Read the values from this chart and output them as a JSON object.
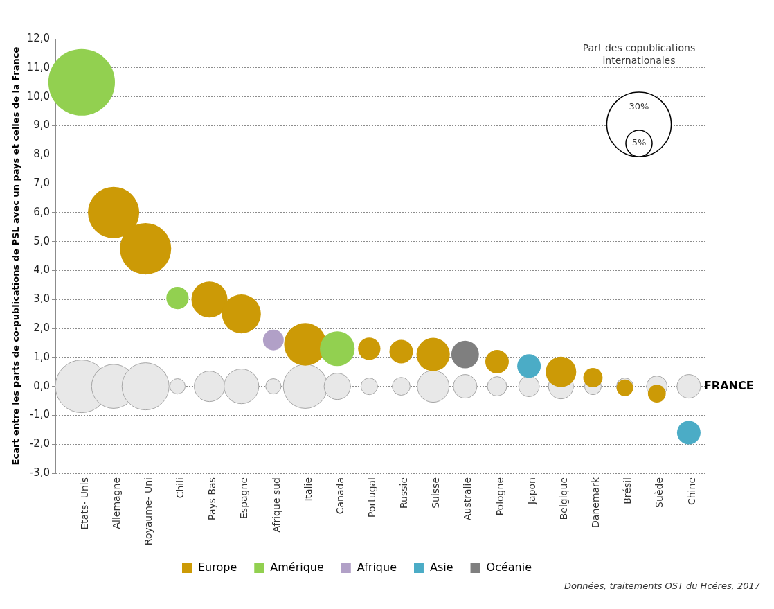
{
  "chart_data": {
    "type": "bubble",
    "ylabel": "Ecart entre les parts de co-publications de PSL avec un pays et celles de la France",
    "categories": [
      "Etats- Unis",
      "Allemagne",
      "Royaume- Uni",
      "Chili",
      "Pays Bas",
      "Espagne",
      "Afrique sud",
      "Italie",
      "Canada",
      "Portugal",
      "Russie",
      "Suisse",
      "Australie",
      "Pologne",
      "Japon",
      "Belgique",
      "Danemark",
      "Brésil",
      "Suède",
      "Chine"
    ],
    "series": [
      {
        "color": "#e8e8e8",
        "values": [
          0,
          0,
          0,
          0,
          0,
          0,
          0,
          0,
          0,
          0,
          0,
          0,
          0,
          0,
          0,
          0,
          0,
          0,
          0,
          0
        ],
        "sizes": [
          20,
          14,
          16,
          1.7,
          6.7,
          8.7,
          1.7,
          14,
          5,
          2,
          2.3,
          7.3,
          4,
          2.7,
          3.1,
          4.5,
          2,
          2,
          3.1,
          4
        ]
      },
      {
        "name": "Europe",
        "color": "#cc9a06",
        "values": [
          null,
          6.0,
          4.75,
          null,
          3.0,
          2.5,
          null,
          1.45,
          null,
          1.3,
          1.2,
          1.1,
          null,
          0.85,
          null,
          0.5,
          0.3,
          -0.05,
          -0.25,
          null
        ],
        "sizes": [
          null,
          19,
          19,
          null,
          9.4,
          10.9,
          null,
          13,
          null,
          3.6,
          4,
          8,
          null,
          4,
          null,
          6.7,
          2.7,
          2,
          2.3,
          null
        ]
      },
      {
        "name": "Amérique",
        "color": "#92d050",
        "values": [
          10.5,
          null,
          null,
          3.05,
          null,
          null,
          null,
          null,
          1.3,
          null,
          null,
          null,
          null,
          null,
          null,
          null,
          null,
          null,
          null,
          null
        ],
        "sizes": [
          32,
          null,
          null,
          3.6,
          null,
          null,
          null,
          null,
          8.7,
          null,
          null,
          null,
          null,
          null,
          null,
          null,
          null,
          null,
          null,
          null
        ]
      },
      {
        "name": "Afrique",
        "color": "#b1a0c7",
        "values": [
          null,
          null,
          null,
          null,
          null,
          null,
          1.6,
          null,
          null,
          null,
          null,
          null,
          null,
          null,
          null,
          null,
          null,
          null,
          null,
          null
        ],
        "sizes": [
          null,
          null,
          null,
          null,
          null,
          null,
          3.1,
          null,
          null,
          null,
          null,
          null,
          null,
          null,
          null,
          null,
          null,
          null,
          null,
          null
        ]
      },
      {
        "name": "Asie",
        "color": "#4bacc6",
        "values": [
          null,
          null,
          null,
          null,
          null,
          null,
          null,
          null,
          null,
          null,
          null,
          null,
          null,
          null,
          0.7,
          null,
          null,
          null,
          null,
          -1.6
        ],
        "sizes": [
          null,
          null,
          null,
          null,
          null,
          null,
          null,
          null,
          null,
          null,
          null,
          null,
          null,
          null,
          4,
          null,
          null,
          null,
          null,
          4
        ]
      },
      {
        "name": "Océanie",
        "color": "#7f7f7f",
        "values": [
          null,
          null,
          null,
          null,
          null,
          null,
          null,
          null,
          null,
          null,
          null,
          null,
          1.1,
          null,
          null,
          null,
          null,
          null,
          null,
          null
        ],
        "sizes": [
          null,
          null,
          null,
          null,
          null,
          null,
          null,
          null,
          null,
          null,
          null,
          null,
          5.5,
          null,
          null,
          null,
          null,
          null,
          null,
          null
        ]
      }
    ],
    "ylim": [
      -3,
      12
    ],
    "yticks": [
      {
        "value": -3,
        "label": "-3,0"
      },
      {
        "value": -2,
        "label": "-2,0"
      },
      {
        "value": -1,
        "label": "-1,0"
      },
      {
        "value": 0,
        "label": "0,0"
      },
      {
        "value": 1,
        "label": "1,0"
      },
      {
        "value": 2,
        "label": "2,0"
      },
      {
        "value": 3,
        "label": "3,0"
      },
      {
        "value": 4,
        "label": "4,0"
      },
      {
        "value": 5,
        "label": "5,0"
      },
      {
        "value": 6,
        "label": "6,0"
      },
      {
        "value": 7,
        "label": "7,0"
      },
      {
        "value": 8,
        "label": "8,0"
      },
      {
        "value": 9,
        "label": "9,0"
      },
      {
        "value": 10,
        "label": "10,0"
      },
      {
        "value": 11,
        "label": "11,0"
      },
      {
        "value": 12,
        "label": "12,0"
      }
    ],
    "size_legend": [
      {
        "value": 5,
        "label": "5%"
      },
      {
        "value": 30,
        "label": "30%"
      }
    ],
    "legend_title": "Part des copublications internationales",
    "legend": "bottom",
    "grid": "y",
    "annotations": [
      {
        "text": "FRANCE",
        "x": "Chine",
        "y": 0
      },
      "Données, traitements OST du Hcéres, 2017"
    ]
  }
}
